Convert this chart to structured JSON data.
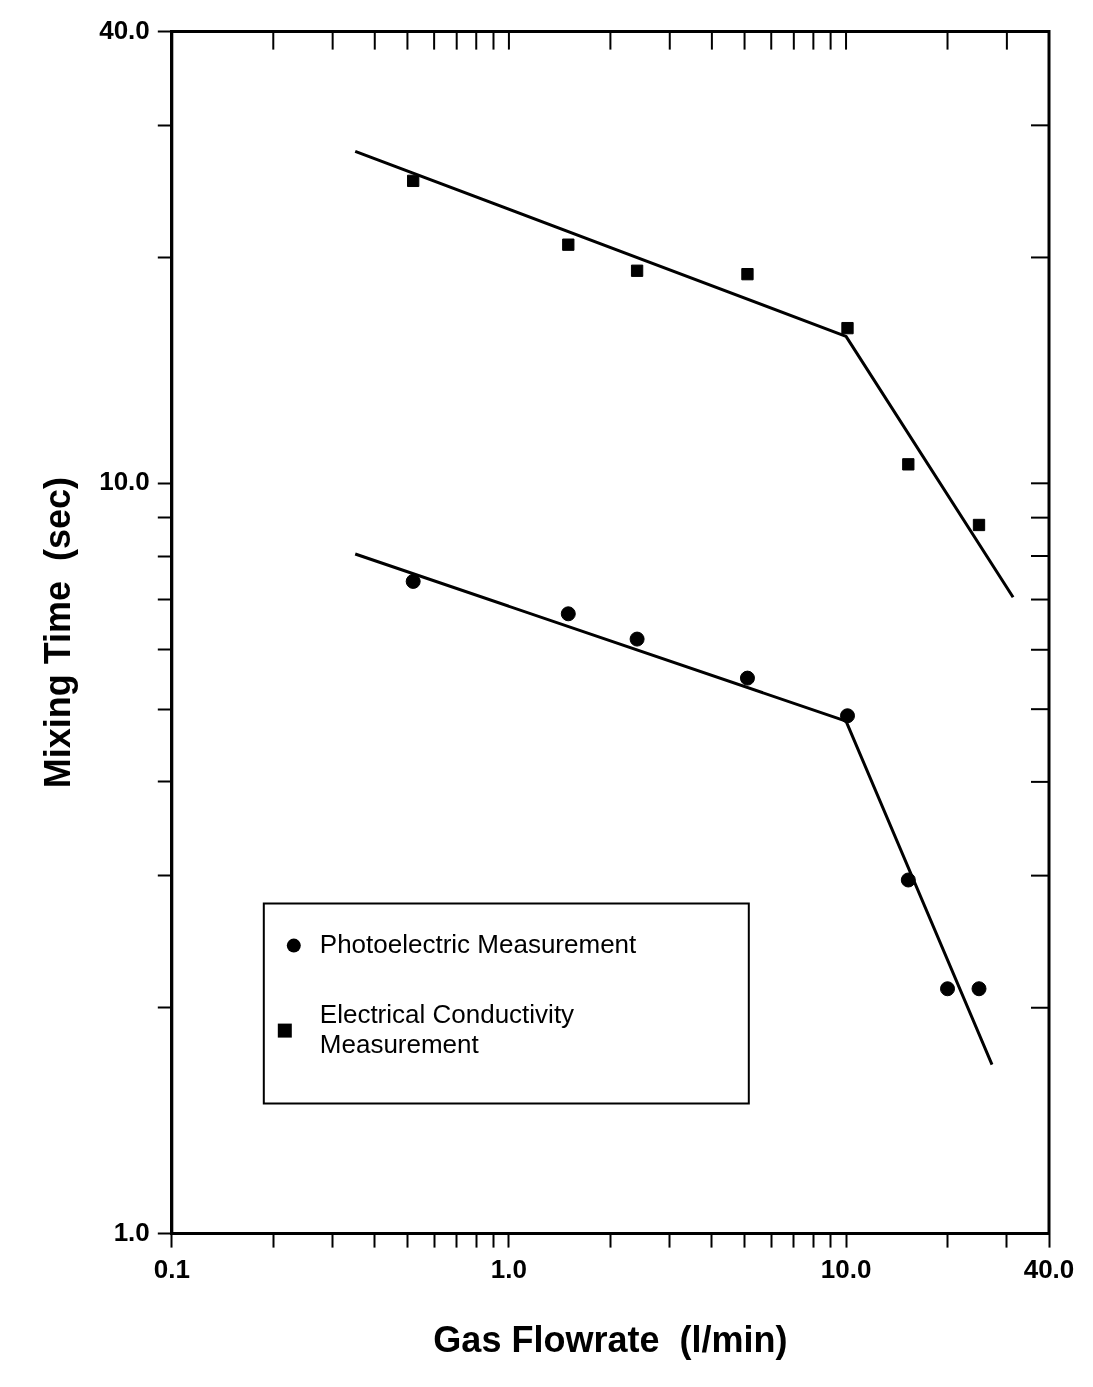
{
  "chart_data": {
    "type": "scatter",
    "xlabel": "Gas Flowrate  (l/min)",
    "ylabel": "Mixing Time  (sec)",
    "log": "xy",
    "grid": false,
    "legend": "bottom left",
    "xlim": [
      0.1,
      40
    ],
    "ylim": [
      1,
      40
    ],
    "xticks": [
      {
        "value": 0.1,
        "label": "0.1"
      },
      {
        "value": 0.2,
        "label": null
      },
      {
        "value": 0.3,
        "label": null
      },
      {
        "value": 0.4,
        "label": null
      },
      {
        "value": 0.5,
        "label": null
      },
      {
        "value": 0.6,
        "label": null
      },
      {
        "value": 0.7,
        "label": null
      },
      {
        "value": 0.8,
        "label": null
      },
      {
        "value": 0.9,
        "label": null
      },
      {
        "value": 1,
        "label": "1.0"
      },
      {
        "value": 2,
        "label": null
      },
      {
        "value": 3,
        "label": null
      },
      {
        "value": 4,
        "label": null
      },
      {
        "value": 5,
        "label": null
      },
      {
        "value": 6,
        "label": null
      },
      {
        "value": 7,
        "label": null
      },
      {
        "value": 8,
        "label": null
      },
      {
        "value": 9,
        "label": null
      },
      {
        "value": 10,
        "label": "10.0"
      },
      {
        "value": 20,
        "label": null
      },
      {
        "value": 30,
        "label": null
      },
      {
        "value": 40,
        "label": "40.0"
      }
    ],
    "yticks": [
      {
        "value": 1,
        "label": "1.0"
      },
      {
        "value": 2,
        "label": null
      },
      {
        "value": 3,
        "label": null
      },
      {
        "value": 4,
        "label": null
      },
      {
        "value": 5,
        "label": null
      },
      {
        "value": 6,
        "label": null
      },
      {
        "value": 7,
        "label": null
      },
      {
        "value": 8,
        "label": null
      },
      {
        "value": 9,
        "label": null
      },
      {
        "value": 10,
        "label": "10.0"
      },
      {
        "value": 20,
        "label": null
      },
      {
        "value": 30,
        "label": null
      },
      {
        "value": 40,
        "label": "40.0"
      }
    ],
    "series": [
      {
        "name": "Photoelectric Measurement",
        "type": "scatter",
        "marker": "circle",
        "color": "#000000",
        "x": [
          0.52,
          1.5,
          2.4,
          5.1,
          10.1,
          15.3,
          20,
          24.8
        ],
        "values": [
          7.4,
          6.7,
          6.2,
          5.5,
          4.9,
          2.96,
          2.12,
          2.12
        ]
      },
      {
        "name": "Electrical Conductivity Measurement",
        "type": "scatter",
        "marker": "square",
        "color": "#000000",
        "x": [
          0.52,
          1.5,
          2.4,
          5.1,
          10.1,
          15.3,
          24.8
        ],
        "values": [
          25.3,
          20.8,
          19.2,
          19,
          16.1,
          10.6,
          8.8
        ]
      },
      {
        "type": "line",
        "marker": "none",
        "color": "#000000",
        "x": [
          0.35,
          10,
          31.3
        ],
        "values": [
          27.7,
          15.7,
          7.05
        ]
      },
      {
        "type": "line",
        "marker": "none",
        "color": "#000000",
        "x": [
          0.35,
          10,
          27.1
        ],
        "values": [
          8.05,
          4.82,
          1.68
        ]
      }
    ]
  }
}
